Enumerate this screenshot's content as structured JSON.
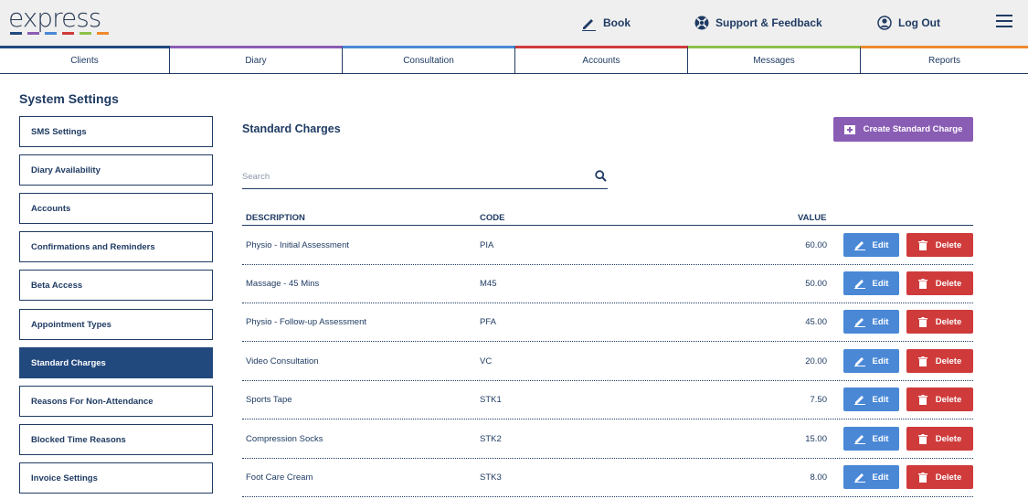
{
  "header": {
    "logo_text": "express",
    "logo_colors": [
      "#22497e",
      "#8a5db5",
      "#4a88d6",
      "#cf3b3b",
      "#8dc04a",
      "#ef8a2e"
    ],
    "book_label": "Book",
    "support_label": "Support & Feedback",
    "logout_label": "Log Out",
    "icons": {
      "book": "pencil-icon",
      "support": "lifebuoy-icon",
      "logout": "user-circle-icon",
      "menu": "hamburger-menu-icon"
    }
  },
  "tabs": [
    {
      "label": "Clients",
      "color": "#22497e"
    },
    {
      "label": "Diary",
      "color": "#8a5db5"
    },
    {
      "label": "Consultation",
      "color": "#4a88d6"
    },
    {
      "label": "Accounts",
      "color": "#cf3b3b"
    },
    {
      "label": "Messages",
      "color": "#8dc04a"
    },
    {
      "label": "Reports",
      "color": "#ef8a2e"
    }
  ],
  "sidebar": {
    "title": "System Settings",
    "items": [
      {
        "label": "SMS Settings",
        "active": false
      },
      {
        "label": "Diary Availability",
        "active": false
      },
      {
        "label": "Accounts",
        "active": false
      },
      {
        "label": "Confirmations and Reminders",
        "active": false
      },
      {
        "label": "Beta Access",
        "active": false
      },
      {
        "label": "Appointment Types",
        "active": false
      },
      {
        "label": "Standard Charges",
        "active": true
      },
      {
        "label": "Reasons For Non-Attendance",
        "active": false
      },
      {
        "label": "Blocked Time Reasons",
        "active": false
      },
      {
        "label": "Invoice Settings",
        "active": false
      }
    ]
  },
  "main": {
    "title": "Standard Charges",
    "create_label": "Create Standard Charge",
    "search": {
      "placeholder": "Search",
      "value": ""
    },
    "columns": {
      "description": "DESCRIPTION",
      "code": "CODE",
      "value": "VALUE"
    },
    "edit_label": "Edit",
    "delete_label": "Delete",
    "rows": [
      {
        "description": "Physio - Initial Assessment",
        "code": "PIA",
        "value": "60.00"
      },
      {
        "description": "Massage - 45 Mins",
        "code": "M45",
        "value": "50.00"
      },
      {
        "description": "Physio - Follow-up Assessment",
        "code": "PFA",
        "value": "45.00"
      },
      {
        "description": "Video Consultation",
        "code": "VC",
        "value": "20.00"
      },
      {
        "description": "Sports Tape",
        "code": "STK1",
        "value": "7.50"
      },
      {
        "description": "Compression Socks",
        "code": "STK2",
        "value": "15.00"
      },
      {
        "description": "Foot Care Cream",
        "code": "STK3",
        "value": "8.00"
      }
    ]
  },
  "colors": {
    "primary": "#1f3b63",
    "active": "#22497e",
    "create": "#8a5db5",
    "edit": "#4a88d6",
    "delete": "#cf3b3b"
  }
}
